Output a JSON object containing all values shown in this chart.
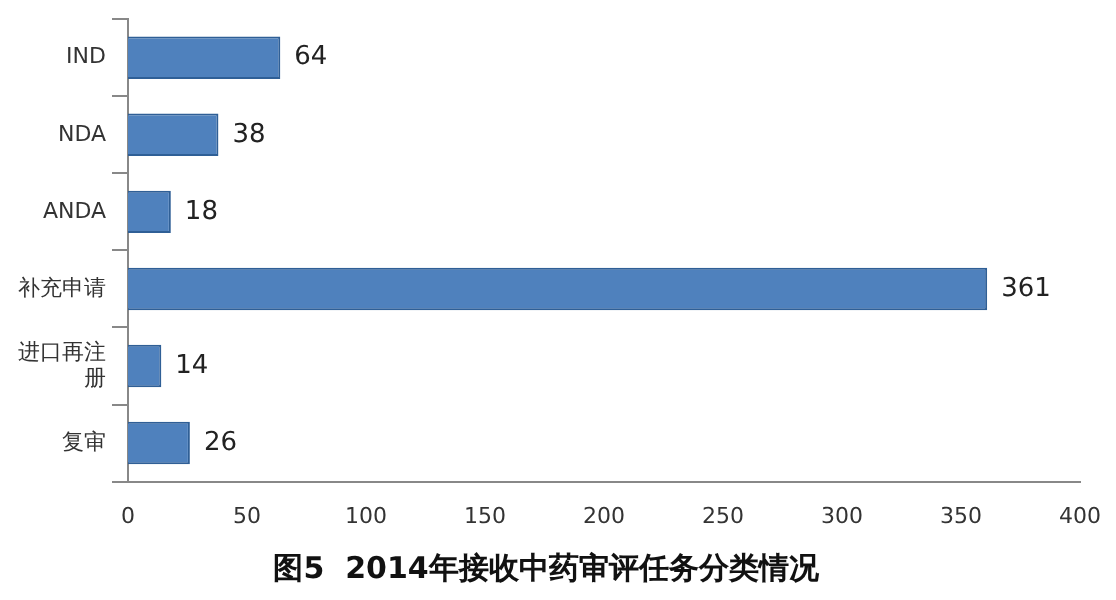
{
  "chart_data": {
    "type": "bar",
    "orientation": "horizontal",
    "title": "图5  2014年接收中药审评任务分类情况",
    "categories": [
      "IND",
      "NDA",
      "ANDA",
      "补充申请",
      "进口再注册",
      "复审"
    ],
    "values": [
      64,
      38,
      18,
      361,
      14,
      26
    ],
    "color": "#4f81bd",
    "xlim": [
      0,
      400
    ],
    "xticks": [
      0,
      50,
      100,
      150,
      200,
      250,
      300,
      350,
      400
    ],
    "grid": false,
    "legend": false,
    "data_labels": true
  }
}
